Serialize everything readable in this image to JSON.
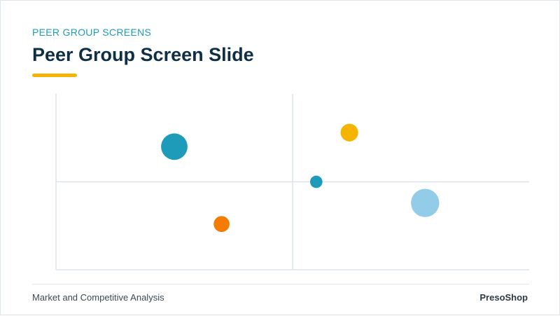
{
  "slide": {
    "kicker": "PEER GROUP SCREENS",
    "title": "Peer Group Screen Slide",
    "accent_color": "#f5b400"
  },
  "footer": {
    "left_text": "Market and Competitive Analysis",
    "right_text": "PresoShop"
  },
  "chart_data": {
    "type": "scatter",
    "title": "",
    "xlabel": "",
    "ylabel": "",
    "xlim": [
      0,
      10
    ],
    "ylim": [
      0,
      10
    ],
    "grid": false,
    "quadrant_lines": {
      "x": 5,
      "y": 5
    },
    "points": [
      {
        "x": 2.5,
        "y": 7.0,
        "size": 3.0,
        "color": "#1e9bb8"
      },
      {
        "x": 3.5,
        "y": 2.6,
        "size": 1.8,
        "color": "#f57c00"
      },
      {
        "x": 6.2,
        "y": 7.8,
        "size": 2.0,
        "color": "#f5b400"
      },
      {
        "x": 5.5,
        "y": 5.0,
        "size": 1.4,
        "color": "#1e9bb8"
      },
      {
        "x": 7.8,
        "y": 3.8,
        "size": 3.2,
        "color": "#92cce8"
      }
    ]
  }
}
